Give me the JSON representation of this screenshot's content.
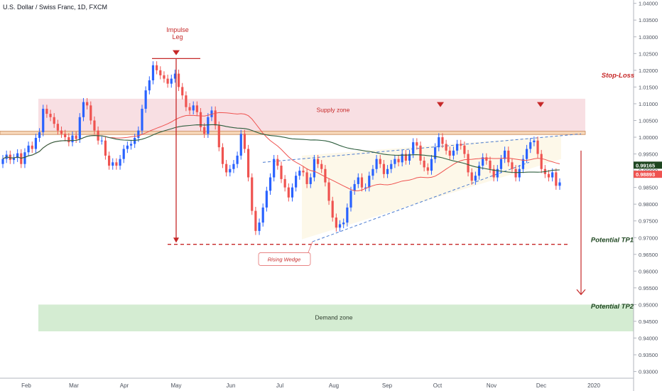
{
  "chart_data": {
    "type": "candlestick",
    "title": "U.S. Dollar / Swiss Franc, 1D, FXCM",
    "x_ticks": [
      "Feb",
      "Mar",
      "Apr",
      "May",
      "Jun",
      "Jul",
      "Aug",
      "Sep",
      "Oct",
      "Nov",
      "Dec",
      "2020"
    ],
    "y_ticks": [
      "1.04000",
      "1.03500",
      "1.03000",
      "1.02500",
      "1.02000",
      "1.01500",
      "1.01000",
      "1.00500",
      "1.00000",
      "0.99500",
      "0.99000",
      "0.98500",
      "0.98000",
      "0.97500",
      "0.97000",
      "0.96500",
      "0.96000",
      "0.95500",
      "0.95000",
      "0.94500",
      "0.94000",
      "0.93500",
      "0.93000"
    ],
    "ylim": [
      0.928,
      1.041
    ],
    "price_tags": [
      {
        "value": 0.99165,
        "text": "0.99165",
        "color": "#1e4620"
      },
      {
        "value": 0.98893,
        "text": "0.98893",
        "color": "#ef5350"
      }
    ],
    "closes": [
      0.9935,
      0.9948,
      0.9932,
      0.9938,
      0.9952,
      0.992,
      0.9955,
      0.9975,
      0.9965,
      0.9998,
      1.0015,
      1.0085,
      1.007,
      1.006,
      1.004,
      1.002,
      1.001,
      1.0,
      0.9985,
      1.0005,
      0.9995,
      1.006,
      1.0105,
      1.0095,
      1.005,
      1.002,
      0.999,
      0.999,
      0.9945,
      0.9915,
      0.9925,
      0.9915,
      0.9935,
      0.9965,
      0.9975,
      0.998,
      0.9998,
      1.002,
      1.0085,
      1.014,
      1.017,
      1.0215,
      1.02,
      1.0185,
      1.0175,
      1.016,
      1.0175,
      1.019,
      1.015,
      1.0125,
      1.009,
      1.008,
      1.0095,
      1.0075,
      1.003,
      1.001,
      1.006,
      1.008,
      1.0035,
      0.997,
      0.992,
      0.9895,
      0.9905,
      0.992,
      0.9945,
      1.001,
      0.9965,
      0.988,
      0.978,
      0.972,
      0.9745,
      0.979,
      0.984,
      0.988,
      0.9935,
      0.9915,
      0.9875,
      0.985,
      0.982,
      0.985,
      0.9885,
      0.99,
      0.9895,
      0.986,
      0.988,
      0.9935,
      0.992,
      0.9905,
      0.9865,
      0.981,
      0.976,
      0.973,
      0.974,
      0.9745,
      0.979,
      0.984,
      0.986,
      0.988,
      0.985,
      0.985,
      0.9885,
      0.9905,
      0.9935,
      0.992,
      0.989,
      0.9905,
      0.992,
      0.9935,
      0.9925,
      0.995,
      0.993,
      0.995,
      0.9985,
      0.9975,
      0.993,
      0.991,
      0.99,
      0.9935,
      0.997,
      1.0,
      0.998,
      0.996,
      0.9945,
      0.996,
      0.998,
      0.9975,
      0.995,
      0.9895,
      0.987,
      0.9885,
      0.9915,
      0.994,
      0.993,
      0.9905,
      0.988,
      0.9905,
      0.9935,
      0.996,
      0.9925,
      0.9905,
      0.988,
      0.9905,
      0.9935,
      0.9965,
      0.9985,
      0.999,
      0.995,
      0.9905,
      0.989,
      0.988,
      0.9895,
      0.9855,
      0.9865
    ],
    "annotations": [
      {
        "id": "supply",
        "text": "Supply zone"
      },
      {
        "id": "demand",
        "text": "Demand zone"
      },
      {
        "id": "impulse",
        "text": "Impulse\nLeg"
      },
      {
        "id": "stoploss",
        "text": "Stop-Loss"
      },
      {
        "id": "tp1",
        "text": "Potential TP1"
      },
      {
        "id": "tp2",
        "text": "Potential TP2"
      },
      {
        "id": "wedge",
        "text": "Rising Wedge"
      }
    ],
    "colors": {
      "up": "#2962ff",
      "down": "#ef5350",
      "supply": "#f8dfe3",
      "demand": "#d4ecd2",
      "ma_fast": "#ef5350",
      "ma_slow": "#2e5e3e",
      "annotation_red": "#c62828",
      "annotation_green": "#1e4620"
    }
  }
}
